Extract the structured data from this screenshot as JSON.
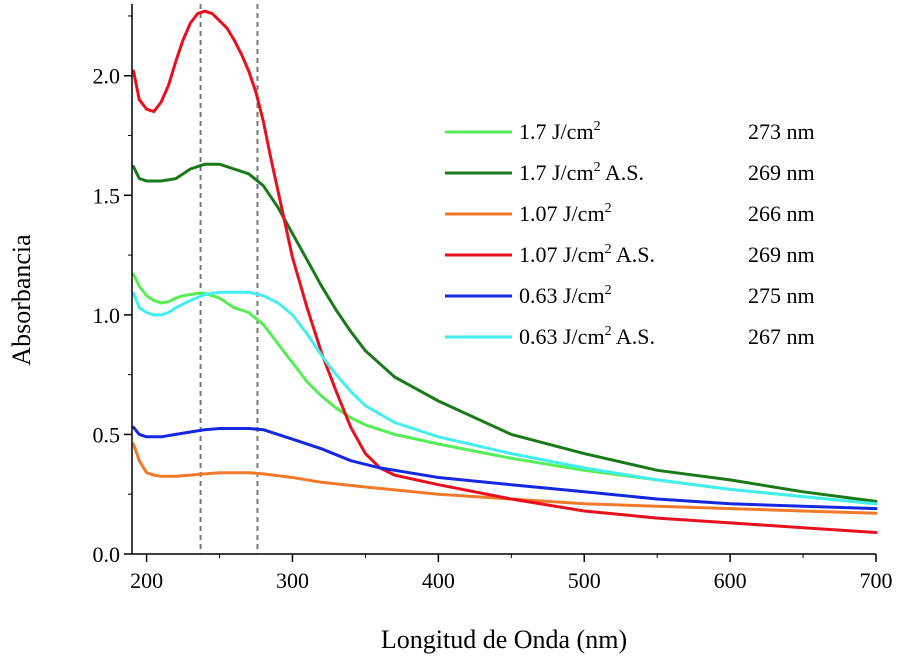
{
  "chart_data": {
    "type": "line",
    "xlabel": "Longitud de Onda (nm)",
    "ylabel": "Absorbancia",
    "xlim": [
      190,
      700
    ],
    "ylim": [
      0,
      2.3
    ],
    "x_ticks": [
      200,
      300,
      400,
      500,
      600,
      700
    ],
    "x_tick_labels": [
      "200",
      "300",
      "400",
      "500",
      "600",
      "700"
    ],
    "y_ticks": [
      0,
      0.5,
      1.0,
      1.5,
      2.0
    ],
    "y_tick_labels": [
      "0.0",
      "0.5",
      "1.0",
      "1.5",
      "2.0"
    ],
    "reference_lines": [
      237,
      276
    ],
    "legend_position": "right",
    "series": [
      {
        "name": "1.7 J/cm2",
        "label_main": "1.7 J/cm",
        "label_sup": "2",
        "label_suffix": "",
        "peak": "273 nm",
        "color": "#55ee55",
        "points": [
          [
            191,
            1.17
          ],
          [
            195,
            1.12
          ],
          [
            200,
            1.08
          ],
          [
            205,
            1.06
          ],
          [
            210,
            1.05
          ],
          [
            215,
            1.055
          ],
          [
            220,
            1.07
          ],
          [
            225,
            1.08
          ],
          [
            230,
            1.085
          ],
          [
            235,
            1.09
          ],
          [
            240,
            1.09
          ],
          [
            245,
            1.08
          ],
          [
            250,
            1.07
          ],
          [
            255,
            1.05
          ],
          [
            260,
            1.03
          ],
          [
            270,
            1.01
          ],
          [
            280,
            0.96
          ],
          [
            290,
            0.88
          ],
          [
            300,
            0.8
          ],
          [
            310,
            0.72
          ],
          [
            320,
            0.66
          ],
          [
            330,
            0.61
          ],
          [
            340,
            0.57
          ],
          [
            350,
            0.54
          ],
          [
            370,
            0.5
          ],
          [
            400,
            0.46
          ],
          [
            450,
            0.4
          ],
          [
            500,
            0.35
          ],
          [
            550,
            0.31
          ],
          [
            600,
            0.27
          ],
          [
            650,
            0.24
          ],
          [
            700,
            0.21
          ]
        ]
      },
      {
        "name": "1.7 J/cm2 A.S.",
        "label_main": "1.7 J/cm",
        "label_sup": "2",
        "label_suffix": " A.S.",
        "peak": "269 nm",
        "color": "#1a7a1a",
        "points": [
          [
            191,
            1.62
          ],
          [
            195,
            1.57
          ],
          [
            200,
            1.56
          ],
          [
            210,
            1.56
          ],
          [
            220,
            1.57
          ],
          [
            230,
            1.61
          ],
          [
            240,
            1.63
          ],
          [
            250,
            1.63
          ],
          [
            260,
            1.61
          ],
          [
            270,
            1.59
          ],
          [
            280,
            1.54
          ],
          [
            290,
            1.45
          ],
          [
            300,
            1.34
          ],
          [
            310,
            1.23
          ],
          [
            320,
            1.12
          ],
          [
            330,
            1.02
          ],
          [
            340,
            0.93
          ],
          [
            350,
            0.85
          ],
          [
            370,
            0.74
          ],
          [
            400,
            0.64
          ],
          [
            450,
            0.5
          ],
          [
            500,
            0.42
          ],
          [
            550,
            0.35
          ],
          [
            600,
            0.31
          ],
          [
            650,
            0.26
          ],
          [
            700,
            0.22
          ]
        ]
      },
      {
        "name": "1.07 J/cm2",
        "label_main": "1.07 J/cm",
        "label_sup": "2",
        "label_suffix": "",
        "peak": "266 nm",
        "color": "#f07a2a",
        "points": [
          [
            191,
            0.46
          ],
          [
            195,
            0.39
          ],
          [
            200,
            0.34
          ],
          [
            205,
            0.33
          ],
          [
            210,
            0.325
          ],
          [
            220,
            0.325
          ],
          [
            230,
            0.33
          ],
          [
            240,
            0.335
          ],
          [
            250,
            0.34
          ],
          [
            260,
            0.34
          ],
          [
            270,
            0.34
          ],
          [
            280,
            0.335
          ],
          [
            300,
            0.32
          ],
          [
            320,
            0.3
          ],
          [
            350,
            0.28
          ],
          [
            400,
            0.25
          ],
          [
            450,
            0.23
          ],
          [
            500,
            0.21
          ],
          [
            550,
            0.2
          ],
          [
            600,
            0.19
          ],
          [
            650,
            0.18
          ],
          [
            700,
            0.17
          ]
        ]
      },
      {
        "name": "1.07 J/cm2 A.S.",
        "label_main": "1.07 J/cm",
        "label_sup": "2",
        "label_suffix": " A.S.",
        "peak": "269 nm",
        "color": "#e8101e",
        "points": [
          [
            191,
            2.02
          ],
          [
            195,
            1.9
          ],
          [
            200,
            1.86
          ],
          [
            205,
            1.85
          ],
          [
            210,
            1.89
          ],
          [
            215,
            1.96
          ],
          [
            220,
            2.06
          ],
          [
            225,
            2.15
          ],
          [
            230,
            2.22
          ],
          [
            235,
            2.26
          ],
          [
            240,
            2.27
          ],
          [
            245,
            2.26
          ],
          [
            250,
            2.23
          ],
          [
            255,
            2.2
          ],
          [
            260,
            2.15
          ],
          [
            265,
            2.09
          ],
          [
            270,
            2.02
          ],
          [
            275,
            1.93
          ],
          [
            280,
            1.81
          ],
          [
            285,
            1.66
          ],
          [
            290,
            1.52
          ],
          [
            295,
            1.38
          ],
          [
            300,
            1.24
          ],
          [
            310,
            1.03
          ],
          [
            320,
            0.84
          ],
          [
            330,
            0.68
          ],
          [
            340,
            0.53
          ],
          [
            350,
            0.42
          ],
          [
            360,
            0.36
          ],
          [
            370,
            0.33
          ],
          [
            400,
            0.29
          ],
          [
            450,
            0.23
          ],
          [
            500,
            0.18
          ],
          [
            550,
            0.15
          ],
          [
            600,
            0.13
          ],
          [
            650,
            0.11
          ],
          [
            700,
            0.09
          ]
        ]
      },
      {
        "name": "0.63 J/cm2",
        "label_main": "0.63 J/cm",
        "label_sup": "2",
        "label_suffix": "",
        "peak": "275 nm",
        "color": "#1428e0",
        "points": [
          [
            191,
            0.53
          ],
          [
            195,
            0.5
          ],
          [
            200,
            0.49
          ],
          [
            210,
            0.49
          ],
          [
            220,
            0.5
          ],
          [
            230,
            0.51
          ],
          [
            240,
            0.52
          ],
          [
            250,
            0.525
          ],
          [
            260,
            0.525
          ],
          [
            270,
            0.525
          ],
          [
            280,
            0.52
          ],
          [
            290,
            0.5
          ],
          [
            300,
            0.48
          ],
          [
            320,
            0.44
          ],
          [
            340,
            0.39
          ],
          [
            360,
            0.36
          ],
          [
            380,
            0.34
          ],
          [
            400,
            0.32
          ],
          [
            450,
            0.29
          ],
          [
            500,
            0.26
          ],
          [
            550,
            0.23
          ],
          [
            600,
            0.21
          ],
          [
            650,
            0.2
          ],
          [
            700,
            0.19
          ]
        ]
      },
      {
        "name": "0.63 J/cm2 A.S.",
        "label_main": "0.63 J/cm",
        "label_sup": "2",
        "label_suffix": " A.S.",
        "peak": "267 nm",
        "color": "#44eeee",
        "points": [
          [
            191,
            1.09
          ],
          [
            195,
            1.03
          ],
          [
            200,
            1.01
          ],
          [
            205,
            1.0
          ],
          [
            210,
            1.0
          ],
          [
            215,
            1.01
          ],
          [
            220,
            1.03
          ],
          [
            230,
            1.06
          ],
          [
            240,
            1.085
          ],
          [
            250,
            1.095
          ],
          [
            260,
            1.095
          ],
          [
            270,
            1.095
          ],
          [
            280,
            1.08
          ],
          [
            290,
            1.05
          ],
          [
            300,
            1.0
          ],
          [
            310,
            0.92
          ],
          [
            320,
            0.83
          ],
          [
            330,
            0.75
          ],
          [
            340,
            0.68
          ],
          [
            350,
            0.62
          ],
          [
            370,
            0.55
          ],
          [
            400,
            0.49
          ],
          [
            450,
            0.42
          ],
          [
            500,
            0.36
          ],
          [
            550,
            0.31
          ],
          [
            600,
            0.27
          ],
          [
            650,
            0.24
          ],
          [
            700,
            0.21
          ]
        ]
      }
    ]
  }
}
